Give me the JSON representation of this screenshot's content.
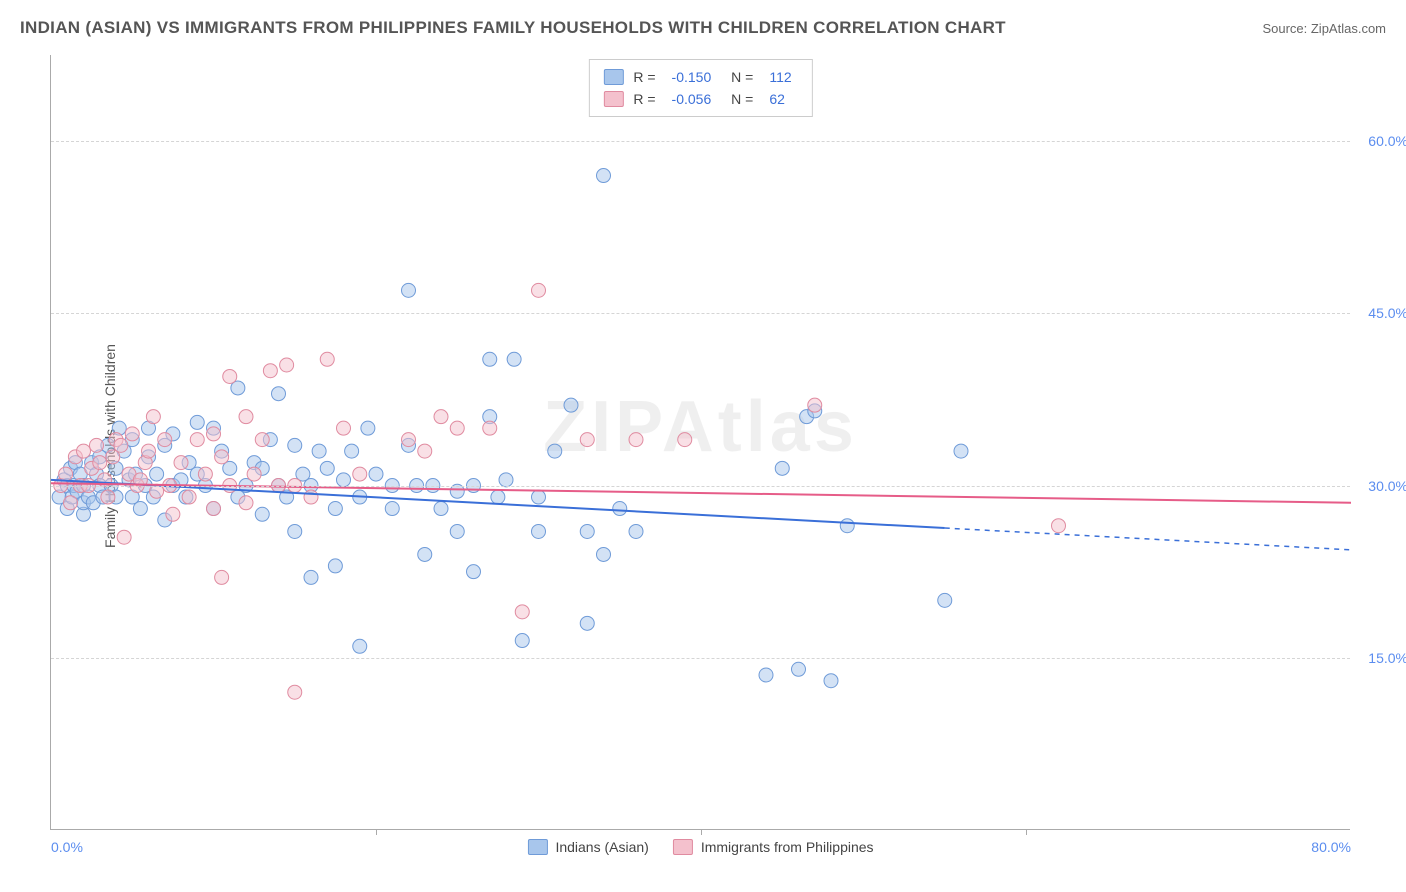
{
  "chart": {
    "type": "scatter",
    "title": "INDIAN (ASIAN) VS IMMIGRANTS FROM PHILIPPINES FAMILY HOUSEHOLDS WITH CHILDREN CORRELATION CHART",
    "source": "Source: ZipAtlas.com",
    "watermark": "ZIPAtlas",
    "ylabel": "Family Households with Children",
    "xlim": [
      0,
      80
    ],
    "ylim": [
      0,
      67.5
    ],
    "y_ticks": [
      15,
      30,
      45,
      60
    ],
    "y_tick_labels": [
      "15.0%",
      "30.0%",
      "45.0%",
      "60.0%"
    ],
    "x_ticks": [
      0,
      20,
      40,
      60,
      80
    ],
    "x_tick_only_labels": [
      0,
      80
    ],
    "x_tick_labels": {
      "0": "0.0%",
      "80": "80.0%"
    },
    "grid_color": "#d5d5d5",
    "background_color": "#ffffff",
    "axis_color": "#aaaaaa",
    "tick_label_color": "#5b8def",
    "marker_radius": 7,
    "marker_opacity": 0.5,
    "marker_stroke_width": 1,
    "series": [
      {
        "id": "indians",
        "label": "Indians (Asian)",
        "fill_color": "#a8c6ec",
        "stroke_color": "#6f9bd8",
        "line_color": "#3a6fd8",
        "R": "-0.150",
        "N": "112",
        "trend": {
          "x0": 0,
          "y0": 30.5,
          "x1": 55,
          "y1": 26.3,
          "x_ext": 80,
          "y_ext": 24.4
        },
        "points": [
          [
            0.5,
            29
          ],
          [
            0.8,
            30.5
          ],
          [
            1,
            28
          ],
          [
            1,
            30
          ],
          [
            1.2,
            31.5
          ],
          [
            1.3,
            29
          ],
          [
            1.4,
            30
          ],
          [
            1.5,
            32
          ],
          [
            1.6,
            29.5
          ],
          [
            1.8,
            31
          ],
          [
            2,
            27.5
          ],
          [
            2,
            28.5
          ],
          [
            2,
            30
          ],
          [
            2.3,
            29
          ],
          [
            2.5,
            32
          ],
          [
            2.6,
            28.5
          ],
          [
            2.8,
            31
          ],
          [
            3,
            30
          ],
          [
            3,
            32.5
          ],
          [
            3.2,
            29
          ],
          [
            3.5,
            33.5
          ],
          [
            3.7,
            30
          ],
          [
            4,
            29
          ],
          [
            4,
            31.5
          ],
          [
            4.2,
            35
          ],
          [
            4.5,
            33
          ],
          [
            4.8,
            30.5
          ],
          [
            5,
            29
          ],
          [
            5,
            34
          ],
          [
            5.2,
            31
          ],
          [
            5.5,
            28
          ],
          [
            5.8,
            30
          ],
          [
            6,
            32.5
          ],
          [
            6,
            35
          ],
          [
            6.3,
            29
          ],
          [
            6.5,
            31
          ],
          [
            7,
            33.5
          ],
          [
            7,
            27
          ],
          [
            7.5,
            30
          ],
          [
            7.5,
            34.5
          ],
          [
            8,
            30.5
          ],
          [
            8.3,
            29
          ],
          [
            8.5,
            32
          ],
          [
            9,
            31
          ],
          [
            9,
            35.5
          ],
          [
            9.5,
            30
          ],
          [
            10,
            35
          ],
          [
            10,
            28
          ],
          [
            10.5,
            33
          ],
          [
            11,
            31.5
          ],
          [
            11.5,
            38.5
          ],
          [
            11.5,
            29
          ],
          [
            12,
            30
          ],
          [
            12.5,
            32
          ],
          [
            13,
            31.5
          ],
          [
            13,
            27.5
          ],
          [
            13.5,
            34
          ],
          [
            14,
            30
          ],
          [
            14.5,
            29
          ],
          [
            15,
            33.5
          ],
          [
            15,
            26
          ],
          [
            15.5,
            31
          ],
          [
            16,
            22
          ],
          [
            16,
            30
          ],
          [
            16.5,
            33
          ],
          [
            17,
            31.5
          ],
          [
            17.5,
            28
          ],
          [
            18,
            30.5
          ],
          [
            18.5,
            33
          ],
          [
            19,
            29
          ],
          [
            19.5,
            35
          ],
          [
            20,
            31
          ],
          [
            21,
            28
          ],
          [
            22,
            47
          ],
          [
            22,
            33.5
          ],
          [
            22.5,
            30
          ],
          [
            23,
            24
          ],
          [
            23.5,
            30
          ],
          [
            24,
            28
          ],
          [
            25,
            29.5
          ],
          [
            25,
            26
          ],
          [
            26,
            22.5
          ],
          [
            26,
            30
          ],
          [
            27,
            36
          ],
          [
            27,
            41
          ],
          [
            27.5,
            29
          ],
          [
            28,
            30.5
          ],
          [
            28.5,
            41
          ],
          [
            29,
            16.5
          ],
          [
            30,
            26
          ],
          [
            30,
            29
          ],
          [
            31,
            33
          ],
          [
            32,
            37
          ],
          [
            33,
            18
          ],
          [
            33,
            26
          ],
          [
            34,
            57
          ],
          [
            34,
            24
          ],
          [
            35,
            28
          ],
          [
            36,
            26
          ],
          [
            44,
            13.5
          ],
          [
            45,
            31.5
          ],
          [
            46,
            14
          ],
          [
            46.5,
            36
          ],
          [
            47,
            36.5
          ],
          [
            48,
            13
          ],
          [
            49,
            26.5
          ],
          [
            55,
            20
          ],
          [
            56,
            33
          ],
          [
            17.5,
            23
          ],
          [
            19,
            16
          ],
          [
            21,
            30
          ],
          [
            14,
            38
          ]
        ]
      },
      {
        "id": "philippines",
        "label": "Immigrants from Philippines",
        "fill_color": "#f4c1cd",
        "stroke_color": "#e08ba0",
        "line_color": "#e65c88",
        "R": "-0.056",
        "N": "62",
        "trend": {
          "x0": 0,
          "y0": 30.2,
          "x1": 80,
          "y1": 28.5,
          "x_ext": 80,
          "y_ext": 28.5
        },
        "points": [
          [
            0.6,
            30
          ],
          [
            0.9,
            31
          ],
          [
            1.2,
            28.5
          ],
          [
            1.5,
            32.5
          ],
          [
            1.8,
            30
          ],
          [
            2,
            33
          ],
          [
            2.3,
            30
          ],
          [
            2.5,
            31.5
          ],
          [
            2.8,
            33.5
          ],
          [
            3,
            32
          ],
          [
            3.3,
            30.5
          ],
          [
            3.5,
            29
          ],
          [
            3.8,
            32.5
          ],
          [
            4,
            34
          ],
          [
            4.3,
            33.5
          ],
          [
            4.5,
            25.5
          ],
          [
            4.8,
            31
          ],
          [
            5,
            34.5
          ],
          [
            5.3,
            30
          ],
          [
            5.5,
            30.5
          ],
          [
            5.8,
            32
          ],
          [
            6,
            33
          ],
          [
            6.3,
            36
          ],
          [
            6.5,
            29.5
          ],
          [
            7,
            34
          ],
          [
            7.3,
            30
          ],
          [
            7.5,
            27.5
          ],
          [
            8,
            32
          ],
          [
            8.5,
            29
          ],
          [
            9,
            34
          ],
          [
            9.5,
            31
          ],
          [
            10,
            28
          ],
          [
            10,
            34.5
          ],
          [
            10.5,
            32.5
          ],
          [
            11,
            30
          ],
          [
            11,
            39.5
          ],
          [
            12,
            28.5
          ],
          [
            12,
            36
          ],
          [
            12.5,
            31
          ],
          [
            13,
            34
          ],
          [
            13.5,
            40
          ],
          [
            14,
            30
          ],
          [
            14.5,
            40.5
          ],
          [
            15,
            30
          ],
          [
            16,
            29
          ],
          [
            17,
            41
          ],
          [
            18,
            35
          ],
          [
            19,
            31
          ],
          [
            22,
            34
          ],
          [
            23,
            33
          ],
          [
            24,
            36
          ],
          [
            25,
            35
          ],
          [
            27,
            35
          ],
          [
            29,
            19
          ],
          [
            30,
            47
          ],
          [
            33,
            34
          ],
          [
            36,
            34
          ],
          [
            39,
            34
          ],
          [
            47,
            37
          ],
          [
            62,
            26.5
          ],
          [
            15,
            12
          ],
          [
            10.5,
            22
          ]
        ]
      }
    ]
  }
}
